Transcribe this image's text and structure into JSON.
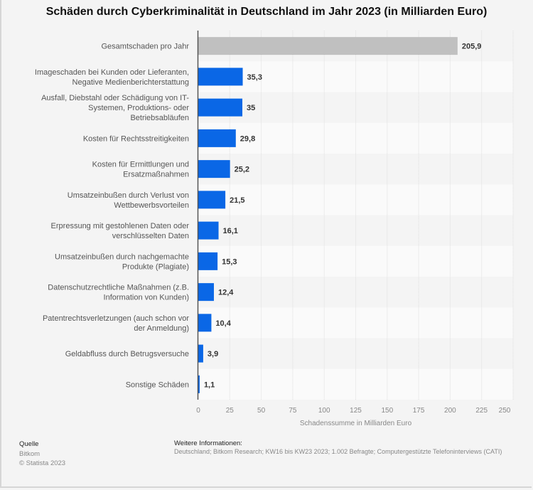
{
  "chart_data": {
    "type": "bar",
    "orientation": "horizontal",
    "title": "Schäden durch Cyberkriminalität in Deutschland im Jahr 2023 (in Milliarden Euro)",
    "xlabel": "Schadenssumme in Milliarden Euro",
    "ylabel": "",
    "xlim": [
      0,
      250
    ],
    "xticks": [
      "0",
      "25",
      "50",
      "75",
      "100",
      "125",
      "150",
      "175",
      "200",
      "225",
      "250"
    ],
    "grid": true,
    "categories": [
      [
        "Gesamtschaden pro Jahr"
      ],
      [
        "Imageschaden bei Kunden oder Lieferanten,",
        "Negative Medienberichterstattung"
      ],
      [
        "Ausfall, Diebstahl oder Schädigung von IT-",
        "Systemen, Produktions- oder",
        "Betriebsabläufen"
      ],
      [
        "Kosten für Rechtsstreitigkeiten"
      ],
      [
        "Kosten für Ermittlungen und",
        "Ersatzmaßnahmen"
      ],
      [
        "Umsatzeinbußen durch Verlust von",
        "Wettbewerbsvorteilen"
      ],
      [
        "Erpressung mit gestohlenen Daten oder",
        "verschlüsselten Daten"
      ],
      [
        "Umsatzeinbußen durch nachgemachte",
        "Produkte (Plagiate)"
      ],
      [
        "Datenschutzrechtliche Maßnahmen (z.B.",
        "Information von Kunden)"
      ],
      [
        "Patentrechtsverletzungen (auch schon vor",
        "der Anmeldung)"
      ],
      [
        "Geldabfluss durch Betrugsversuche"
      ],
      [
        "Sonstige Schäden"
      ]
    ],
    "values": [
      205.9,
      35.3,
      35,
      29.8,
      25.2,
      21.5,
      16.1,
      15.3,
      12.4,
      10.4,
      3.9,
      1.1
    ],
    "value_labels": [
      "205,9",
      "35,3",
      "35",
      "29,8",
      "25,2",
      "21,5",
      "16,1",
      "15,3",
      "12,4",
      "10,4",
      "3,9",
      "1,1"
    ],
    "colors": {
      "total": "#c0c0c0",
      "default": "#0a67e6"
    },
    "highlight_index": 0
  },
  "footer": {
    "source_heading": "Quelle",
    "source": "Bitkom",
    "copyright": "© Statista 2023",
    "info_heading": "Weitere Informationen:",
    "info": "Deutschland; Bitkom Research; KW16 bis KW23 2023; 1.002 Befragte; Computergestützte Telefoninterviews (CATI)"
  }
}
